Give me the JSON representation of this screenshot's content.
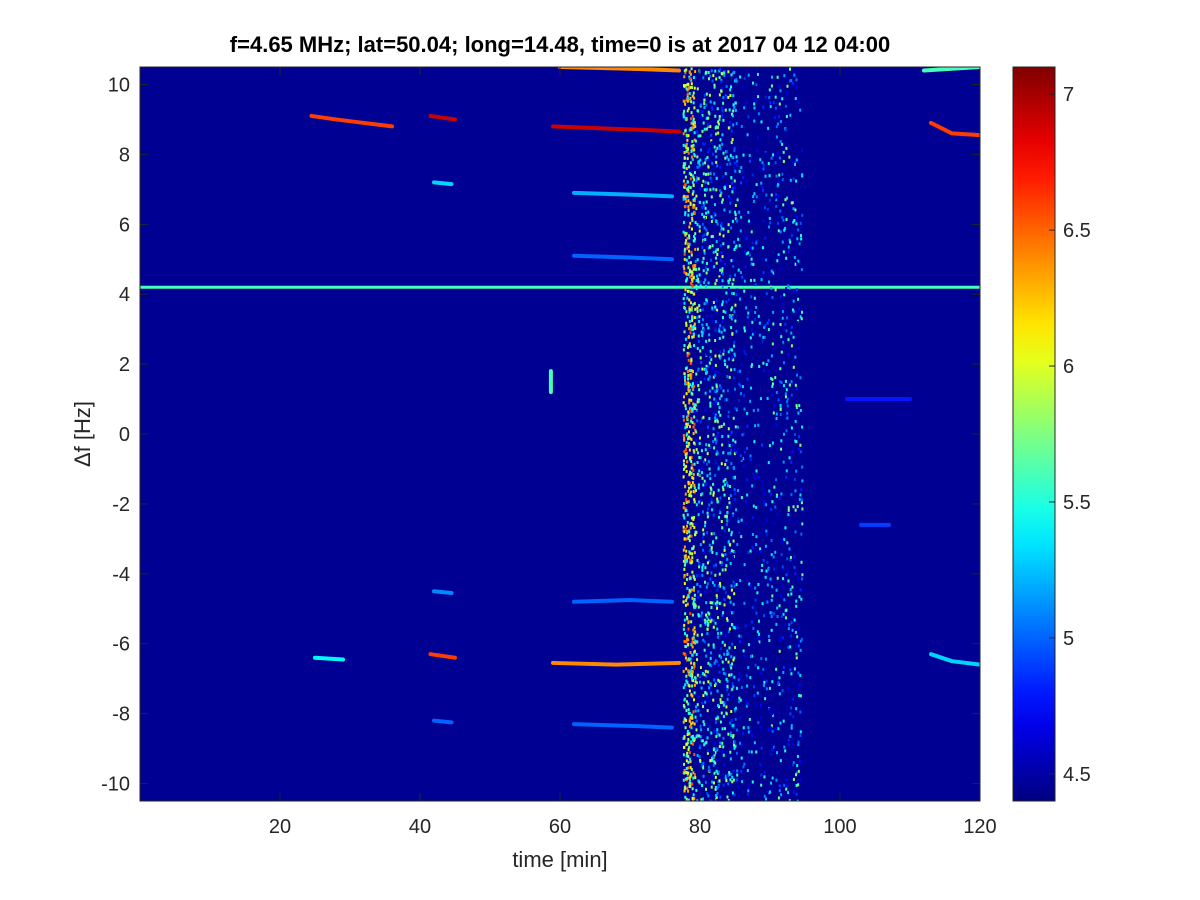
{
  "chart_data": {
    "type": "heatmap",
    "title": "f=4.65 MHz;  lat=50.04; long=14.48, time=0 is at 2017 04 12 04:00",
    "xlabel": "time [min]",
    "ylabel": "Δf [Hz]",
    "xlim": [
      0,
      120
    ],
    "ylim": [
      -10.5,
      10.5
    ],
    "x_ticks": [
      20,
      40,
      60,
      80,
      100,
      120
    ],
    "x_tick_labels": [
      "20",
      "40",
      "60",
      "80",
      "100",
      "120"
    ],
    "y_ticks": [
      10,
      8,
      6,
      4,
      2,
      0,
      -2,
      -4,
      -6,
      -8,
      -10
    ],
    "y_tick_labels": [
      "10",
      "8",
      "6",
      "4",
      "2",
      "0",
      "-2",
      "-4",
      "-6",
      "-8",
      "-10"
    ],
    "colorbar": {
      "colormap": "jet",
      "clim": [
        4.4,
        7.1
      ],
      "ticks": [
        7,
        6.5,
        6,
        5.5,
        5,
        4.5
      ],
      "tick_labels": [
        "7",
        "6.5",
        "6",
        "5.5",
        "5",
        "4.5"
      ]
    },
    "background_value": 4.45,
    "features": [
      {
        "kind": "horizontal_line",
        "y": 4.2,
        "x_range": [
          0,
          120
        ],
        "value": 5.6
      },
      {
        "kind": "broadband_column",
        "x_range": [
          77.5,
          79.2
        ],
        "value": 5.8
      },
      {
        "kind": "noisy_band",
        "x_range": [
          79.2,
          85
        ],
        "value": 5.2
      },
      {
        "kind": "noisy_band",
        "x_range": [
          85,
          90
        ],
        "value": 4.8
      },
      {
        "kind": "noisy_band",
        "x_range": [
          90,
          94.5
        ],
        "value": 5.0
      },
      {
        "kind": "trace",
        "points": [
          [
            24.5,
            9.1
          ],
          [
            28,
            9.0
          ],
          [
            32,
            8.9
          ],
          [
            36,
            8.8
          ]
        ],
        "value": 6.6
      },
      {
        "kind": "trace",
        "points": [
          [
            41.5,
            9.1
          ],
          [
            45,
            9.0
          ]
        ],
        "value": 6.9
      },
      {
        "kind": "trace",
        "points": [
          [
            59,
            8.8
          ],
          [
            65,
            8.75
          ],
          [
            72,
            8.7
          ],
          [
            77,
            8.65
          ]
        ],
        "value": 6.9
      },
      {
        "kind": "trace",
        "points": [
          [
            113,
            8.9
          ],
          [
            116,
            8.6
          ],
          [
            120,
            8.55
          ]
        ],
        "value": 6.6
      },
      {
        "kind": "trace",
        "points": [
          [
            60,
            10.5
          ],
          [
            70,
            10.45
          ],
          [
            77,
            10.4
          ]
        ],
        "value": 6.4
      },
      {
        "kind": "trace",
        "points": [
          [
            112,
            10.4
          ],
          [
            120,
            10.5
          ]
        ],
        "value": 5.6
      },
      {
        "kind": "trace",
        "points": [
          [
            25,
            -6.4
          ],
          [
            29,
            -6.45
          ]
        ],
        "value": 5.4
      },
      {
        "kind": "trace",
        "points": [
          [
            41.5,
            -6.3
          ],
          [
            45,
            -6.4
          ]
        ],
        "value": 6.6
      },
      {
        "kind": "trace",
        "points": [
          [
            59,
            -6.55
          ],
          [
            68,
            -6.6
          ],
          [
            77,
            -6.55
          ]
        ],
        "value": 6.4
      },
      {
        "kind": "trace",
        "points": [
          [
            113,
            -6.3
          ],
          [
            116,
            -6.5
          ],
          [
            120,
            -6.6
          ]
        ],
        "value": 5.3
      },
      {
        "kind": "trace",
        "points": [
          [
            62,
            6.9
          ],
          [
            70,
            6.85
          ],
          [
            76,
            6.8
          ]
        ],
        "value": 5.2
      },
      {
        "kind": "trace",
        "points": [
          [
            62,
            5.1
          ],
          [
            70,
            5.05
          ],
          [
            76,
            5.0
          ]
        ],
        "value": 5.0
      },
      {
        "kind": "trace",
        "points": [
          [
            62,
            -4.8
          ],
          [
            70,
            -4.75
          ],
          [
            76,
            -4.8
          ]
        ],
        "value": 5.0
      },
      {
        "kind": "trace",
        "points": [
          [
            62,
            -8.3
          ],
          [
            70,
            -8.35
          ],
          [
            76,
            -8.4
          ]
        ],
        "value": 5.0
      },
      {
        "kind": "trace",
        "points": [
          [
            42,
            7.2
          ],
          [
            44.5,
            7.15
          ]
        ],
        "value": 5.3
      },
      {
        "kind": "trace",
        "points": [
          [
            42,
            -4.5
          ],
          [
            44.5,
            -4.55
          ]
        ],
        "value": 5.1
      },
      {
        "kind": "trace",
        "points": [
          [
            42,
            -8.2
          ],
          [
            44.5,
            -8.25
          ]
        ],
        "value": 5.0
      },
      {
        "kind": "trace",
        "points": [
          [
            58.7,
            1.8
          ],
          [
            58.7,
            1.2
          ]
        ],
        "value": 5.6
      },
      {
        "kind": "trace",
        "points": [
          [
            103,
            -2.6
          ],
          [
            107,
            -2.6
          ]
        ],
        "value": 4.9
      },
      {
        "kind": "trace",
        "points": [
          [
            101,
            1.0
          ],
          [
            110,
            1.0
          ]
        ],
        "value": 4.8
      }
    ]
  }
}
